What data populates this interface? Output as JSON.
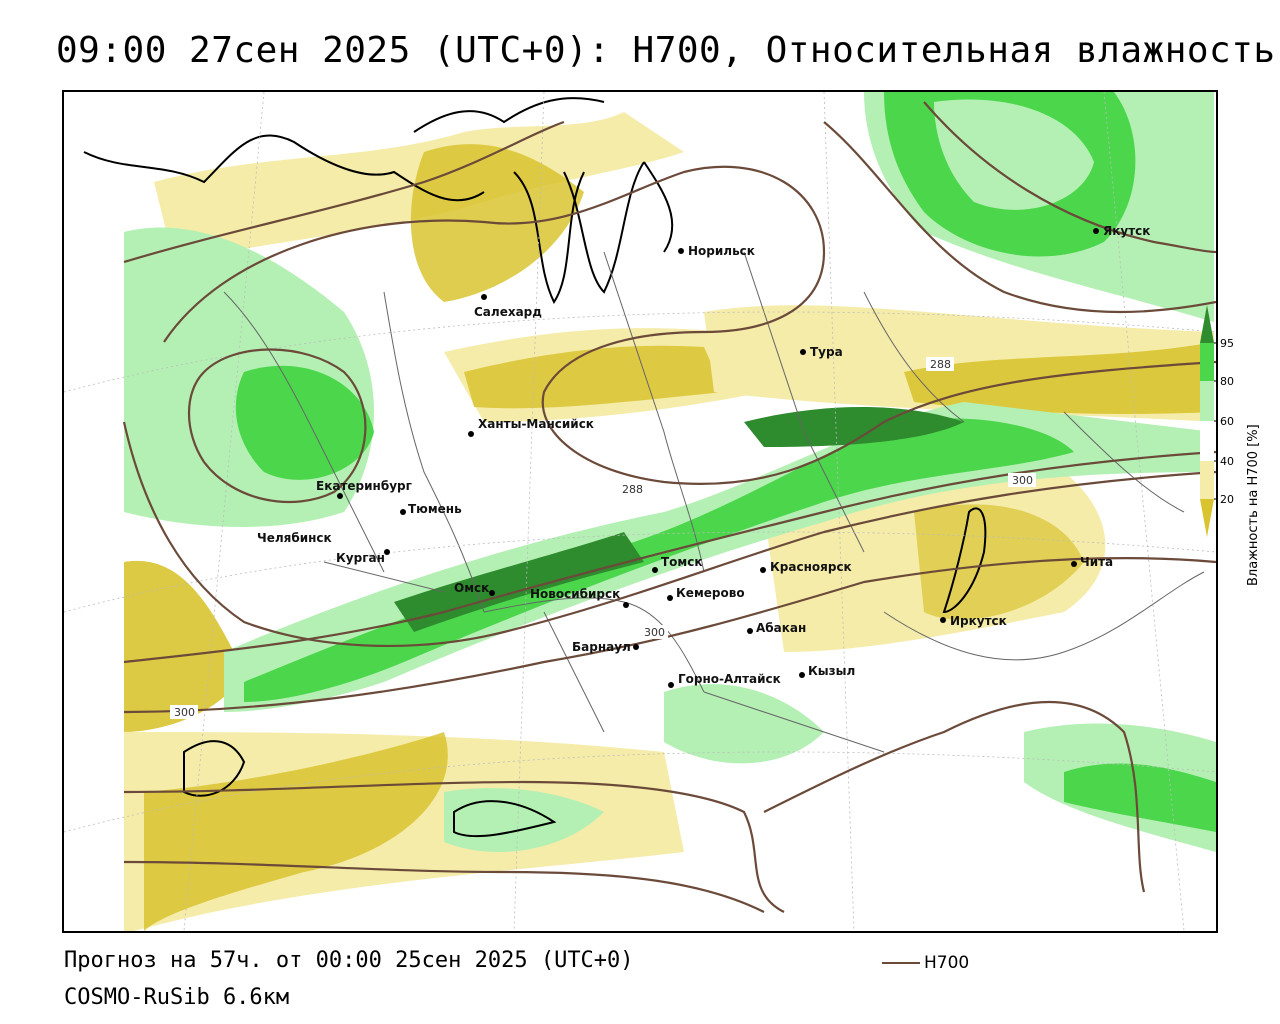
{
  "title": "09:00 27сен 2025 (UTC+0): H700, Относительная влажность",
  "footer": {
    "forecast": "Прогноз на 57ч. от 00:00 25сен 2025 (UTC+0)",
    "model": "COSMO-RuSib 6.6км",
    "legend_label": "H700"
  },
  "colorbar": {
    "title": "Влажность на H700 [%]",
    "ticks": [
      "95",
      "80",
      "60",
      "40",
      "20"
    ],
    "colors": [
      "#2e8b2e",
      "#4cd64c",
      "#b4f0b4",
      "#ffffff",
      "#f5ecaa",
      "#d9c430"
    ]
  },
  "contour_labels": [
    "288",
    "288",
    "300",
    "300",
    "300"
  ],
  "cities": [
    {
      "name": "Норильск"
    },
    {
      "name": "Якутск"
    },
    {
      "name": "Салехард"
    },
    {
      "name": "Тура"
    },
    {
      "name": "Ханты-Мансийск"
    },
    {
      "name": "Екатеринбург"
    },
    {
      "name": "Тюмень"
    },
    {
      "name": "Челябинск"
    },
    {
      "name": "Курган"
    },
    {
      "name": "Омск"
    },
    {
      "name": "Новосибирск"
    },
    {
      "name": "Томск"
    },
    {
      "name": "Кемерово"
    },
    {
      "name": "Красноярск"
    },
    {
      "name": "Барнаул"
    },
    {
      "name": "Абакан"
    },
    {
      "name": "Горно-Алтайск"
    },
    {
      "name": "Кызыл"
    },
    {
      "name": "Иркутск"
    },
    {
      "name": "Чита"
    }
  ],
  "colors": {
    "dry_dark": "#d9c430",
    "dry_light": "#f5ecaa",
    "moist_light": "#b4f0b4",
    "moist": "#4cd64c",
    "moist_dark": "#2e8b2e",
    "contour": "#6b4a3a"
  }
}
